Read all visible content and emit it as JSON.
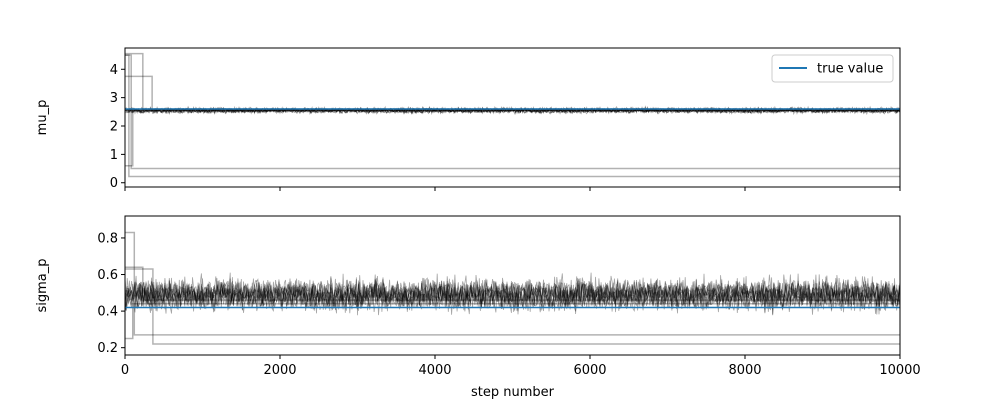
{
  "chart_data": [
    {
      "type": "line",
      "ylabel": "mu_p",
      "xlim": [
        0,
        10000
      ],
      "ylim": [
        -0.15,
        4.75
      ],
      "yticks": [
        0,
        1,
        2,
        3,
        4
      ],
      "yticklabels": [
        "0",
        "1",
        "2",
        "3",
        "4"
      ],
      "show_xticklabels": false,
      "legend": {
        "placement": "upper right",
        "entries": [
          {
            "label": "true value",
            "color": "#1f77b4"
          }
        ]
      },
      "true_value": 2.6,
      "walkers_color": "#000000",
      "walkers": [
        {
          "band": [
            2.45,
            2.65
          ],
          "desc": "bulk of walkers converged near true value"
        }
      ],
      "stuck_walkers": [
        {
          "final": 0.5,
          "start": 4.5,
          "change_at": 80
        },
        {
          "final": 0.22,
          "start": 4.5,
          "change_at": 50
        },
        {
          "final": 2.55,
          "start": 3.75,
          "change_at": 350
        },
        {
          "final": 2.6,
          "start": 4.55,
          "change_at": 230
        },
        {
          "final": 2.55,
          "start": 0.6,
          "change_at": 100
        }
      ]
    },
    {
      "type": "line",
      "xlabel": "step number",
      "ylabel": "sigma_p",
      "xlim": [
        0,
        10000
      ],
      "ylim": [
        0.16,
        0.92
      ],
      "xticks": [
        0,
        2000,
        4000,
        6000,
        8000,
        10000
      ],
      "xticklabels": [
        "0",
        "2000",
        "4000",
        "6000",
        "8000",
        "10000"
      ],
      "yticks": [
        0.2,
        0.4,
        0.6,
        0.8
      ],
      "yticklabels": [
        "0.2",
        "0.4",
        "0.6",
        "0.8"
      ],
      "show_xticklabels": true,
      "true_value": 0.42,
      "walkers_color": "#000000",
      "walkers": [
        {
          "band": [
            0.4,
            0.58
          ],
          "desc": "bulk of walkers"
        }
      ],
      "stuck_walkers": [
        {
          "final": 0.27,
          "start": 0.83,
          "change_at": 120
        },
        {
          "final": 0.22,
          "start": 0.63,
          "change_at": 360
        },
        {
          "final": 0.44,
          "start": 0.25,
          "change_at": 100
        },
        {
          "final": 0.46,
          "start": 0.64,
          "change_at": 230
        }
      ]
    }
  ]
}
